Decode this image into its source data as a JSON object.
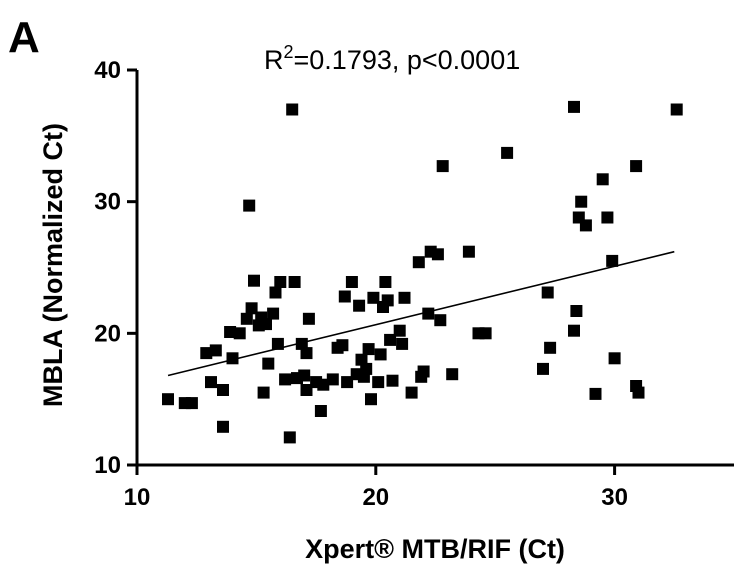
{
  "panel_label": "A",
  "stat": {
    "base": "R",
    "sup": "2",
    "rest": "=0.1793, p<0.0001"
  },
  "chart_data": {
    "type": "scatter",
    "xlabel": "Xpert® MTB/RIF (Ct)",
    "ylabel": "MBLA (Normalized Ct)",
    "xlim": [
      10,
      35
    ],
    "ylim": [
      10,
      40
    ],
    "xticks": [
      10,
      20,
      30
    ],
    "yticks": [
      10,
      20,
      30,
      40
    ],
    "grid": false,
    "marker_color": "#000000",
    "regression_line": {
      "x": [
        11.3,
        32.5
      ],
      "y": [
        16.8,
        26.2
      ]
    },
    "points": [
      [
        11.3,
        15.0
      ],
      [
        12.0,
        14.7
      ],
      [
        12.3,
        14.7
      ],
      [
        12.9,
        18.5
      ],
      [
        13.1,
        16.3
      ],
      [
        13.3,
        18.7
      ],
      [
        13.6,
        12.9
      ],
      [
        13.6,
        15.7
      ],
      [
        13.9,
        20.1
      ],
      [
        14.0,
        18.1
      ],
      [
        14.3,
        20.0
      ],
      [
        14.6,
        21.1
      ],
      [
        14.7,
        29.7
      ],
      [
        14.8,
        21.9
      ],
      [
        14.9,
        24.0
      ],
      [
        15.1,
        20.6
      ],
      [
        15.2,
        21.2
      ],
      [
        15.3,
        15.5
      ],
      [
        15.4,
        20.7
      ],
      [
        15.5,
        17.7
      ],
      [
        15.7,
        21.5
      ],
      [
        15.8,
        23.1
      ],
      [
        15.9,
        19.2
      ],
      [
        16.0,
        23.9
      ],
      [
        16.2,
        16.5
      ],
      [
        16.4,
        12.1
      ],
      [
        16.5,
        37.0
      ],
      [
        16.6,
        23.9
      ],
      [
        16.7,
        16.6
      ],
      [
        16.9,
        19.2
      ],
      [
        17.0,
        16.8
      ],
      [
        17.1,
        15.7
      ],
      [
        17.1,
        18.5
      ],
      [
        17.2,
        21.1
      ],
      [
        17.5,
        16.3
      ],
      [
        17.7,
        14.1
      ],
      [
        17.8,
        16.1
      ],
      [
        18.2,
        16.5
      ],
      [
        18.4,
        18.9
      ],
      [
        18.6,
        19.1
      ],
      [
        18.7,
        22.8
      ],
      [
        18.8,
        16.3
      ],
      [
        19.0,
        23.9
      ],
      [
        19.2,
        16.9
      ],
      [
        19.3,
        22.1
      ],
      [
        19.4,
        18.0
      ],
      [
        19.5,
        16.7
      ],
      [
        19.6,
        17.3
      ],
      [
        19.7,
        18.8
      ],
      [
        19.8,
        15.0
      ],
      [
        19.9,
        22.7
      ],
      [
        20.1,
        16.3
      ],
      [
        20.2,
        18.4
      ],
      [
        20.3,
        22.0
      ],
      [
        20.4,
        23.9
      ],
      [
        20.5,
        22.5
      ],
      [
        20.6,
        19.5
      ],
      [
        20.7,
        16.4
      ],
      [
        21.0,
        20.2
      ],
      [
        21.1,
        19.2
      ],
      [
        21.2,
        22.7
      ],
      [
        21.5,
        15.5
      ],
      [
        21.8,
        25.4
      ],
      [
        21.9,
        16.7
      ],
      [
        22.0,
        17.1
      ],
      [
        22.2,
        21.5
      ],
      [
        22.3,
        26.2
      ],
      [
        22.6,
        26.0
      ],
      [
        22.7,
        21.0
      ],
      [
        22.8,
        32.7
      ],
      [
        23.2,
        16.9
      ],
      [
        23.9,
        26.2
      ],
      [
        24.3,
        20.0
      ],
      [
        24.6,
        20.0
      ],
      [
        25.5,
        33.7
      ],
      [
        27.0,
        17.3
      ],
      [
        27.2,
        23.1
      ],
      [
        27.3,
        18.9
      ],
      [
        28.3,
        37.2
      ],
      [
        28.3,
        20.2
      ],
      [
        28.4,
        21.7
      ],
      [
        28.5,
        28.8
      ],
      [
        28.6,
        30.0
      ],
      [
        28.8,
        28.2
      ],
      [
        29.2,
        15.4
      ],
      [
        29.5,
        31.7
      ],
      [
        29.7,
        28.8
      ],
      [
        29.9,
        25.5
      ],
      [
        30.0,
        18.1
      ],
      [
        30.9,
        32.7
      ],
      [
        30.9,
        16.0
      ],
      [
        31.0,
        15.5
      ],
      [
        32.6,
        37.0
      ]
    ]
  }
}
